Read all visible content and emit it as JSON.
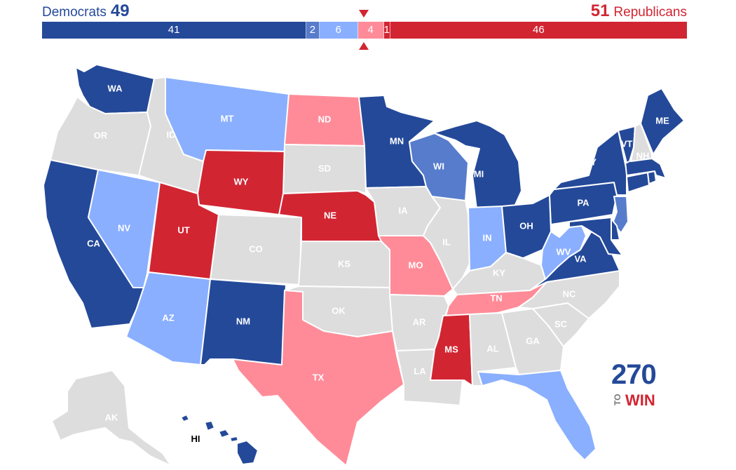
{
  "header": {
    "dem_name": "Democrats",
    "dem_total": "49",
    "rep_total": "51",
    "rep_name": "Republicans"
  },
  "bar": [
    {
      "label": "41",
      "seats": 41,
      "color": "#244999",
      "category": "safe-dem"
    },
    {
      "label": "2",
      "seats": 2,
      "color": "#577ccc",
      "category": "likely-dem"
    },
    {
      "label": "6",
      "seats": 6,
      "color": "#8aafff",
      "category": "leans-dem"
    },
    {
      "label": "4",
      "seats": 4,
      "color": "#ff8b98",
      "category": "leans-rep"
    },
    {
      "label": "1",
      "seats": 1,
      "color": "#d22532",
      "category": "likely-rep"
    },
    {
      "label": "46",
      "seats": 46,
      "color": "#d22532",
      "category": "safe-rep"
    }
  ],
  "colors": {
    "safe_dem": "#244999",
    "likely_dem": "#577ccc",
    "leans_dem": "#8aafff",
    "leans_rep": "#ff8b98",
    "safe_rep": "#d22532",
    "no_race": "#dddddd"
  },
  "states": [
    {
      "abbr": "WA",
      "rating": "safe_dem"
    },
    {
      "abbr": "OR",
      "rating": "no_race"
    },
    {
      "abbr": "CA",
      "rating": "safe_dem"
    },
    {
      "abbr": "NV",
      "rating": "leans_dem"
    },
    {
      "abbr": "ID",
      "rating": "no_race"
    },
    {
      "abbr": "MT",
      "rating": "leans_dem"
    },
    {
      "abbr": "WY",
      "rating": "safe_rep"
    },
    {
      "abbr": "UT",
      "rating": "safe_rep"
    },
    {
      "abbr": "AZ",
      "rating": "leans_dem"
    },
    {
      "abbr": "CO",
      "rating": "no_race"
    },
    {
      "abbr": "NM",
      "rating": "safe_dem"
    },
    {
      "abbr": "ND",
      "rating": "leans_rep"
    },
    {
      "abbr": "SD",
      "rating": "no_race"
    },
    {
      "abbr": "NE",
      "rating": "safe_rep"
    },
    {
      "abbr": "KS",
      "rating": "no_race"
    },
    {
      "abbr": "OK",
      "rating": "no_race"
    },
    {
      "abbr": "TX",
      "rating": "leans_rep"
    },
    {
      "abbr": "MN",
      "rating": "safe_dem"
    },
    {
      "abbr": "IA",
      "rating": "no_race"
    },
    {
      "abbr": "MO",
      "rating": "leans_rep"
    },
    {
      "abbr": "AR",
      "rating": "no_race"
    },
    {
      "abbr": "LA",
      "rating": "no_race"
    },
    {
      "abbr": "WI",
      "rating": "likely_dem"
    },
    {
      "abbr": "IL",
      "rating": "no_race"
    },
    {
      "abbr": "MI",
      "rating": "safe_dem"
    },
    {
      "abbr": "IN",
      "rating": "leans_dem"
    },
    {
      "abbr": "OH",
      "rating": "safe_dem"
    },
    {
      "abbr": "KY",
      "rating": "no_race"
    },
    {
      "abbr": "TN",
      "rating": "leans_rep"
    },
    {
      "abbr": "MS",
      "rating": "safe_rep"
    },
    {
      "abbr": "AL",
      "rating": "no_race"
    },
    {
      "abbr": "GA",
      "rating": "no_race"
    },
    {
      "abbr": "FL",
      "rating": "leans_dem"
    },
    {
      "abbr": "SC",
      "rating": "no_race"
    },
    {
      "abbr": "NC",
      "rating": "no_race"
    },
    {
      "abbr": "VA",
      "rating": "safe_dem"
    },
    {
      "abbr": "WV",
      "rating": "leans_dem"
    },
    {
      "abbr": "PA",
      "rating": "safe_dem"
    },
    {
      "abbr": "NY",
      "rating": "safe_dem"
    },
    {
      "abbr": "VT",
      "rating": "safe_dem"
    },
    {
      "abbr": "NH",
      "rating": "no_race"
    },
    {
      "abbr": "ME",
      "rating": "safe_dem"
    },
    {
      "abbr": "MA",
      "rating": "safe_dem"
    },
    {
      "abbr": "CT",
      "rating": "safe_dem"
    },
    {
      "abbr": "RI",
      "rating": "safe_dem"
    },
    {
      "abbr": "NJ",
      "rating": "likely_dem"
    },
    {
      "abbr": "DE",
      "rating": "safe_dem"
    },
    {
      "abbr": "MD",
      "rating": "safe_dem"
    },
    {
      "abbr": "AK",
      "rating": "no_race"
    },
    {
      "abbr": "HI",
      "rating": "safe_dem"
    }
  ],
  "logo": {
    "number": "270",
    "to": "TO",
    "win": "WIN"
  }
}
